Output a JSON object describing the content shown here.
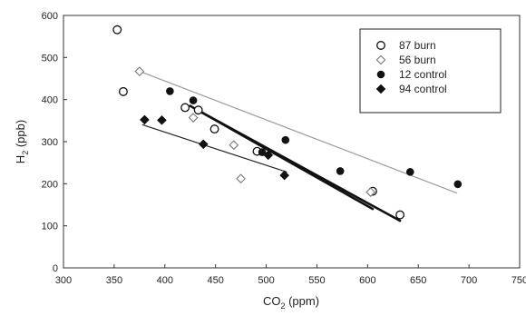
{
  "chart_data": {
    "type": "scatter",
    "title": "",
    "xlabel": {
      "main": "CO",
      "sub": "2",
      "unit": " (ppm)"
    },
    "ylabel": {
      "main": "H",
      "sub": "2",
      "unit": " (ppb)"
    },
    "xlim": [
      300,
      750
    ],
    "ylim": [
      0,
      600
    ],
    "x_ticks": [
      300,
      350,
      400,
      450,
      500,
      550,
      600,
      650,
      700,
      750
    ],
    "y_ticks": [
      0,
      100,
      200,
      300,
      400,
      500,
      600
    ],
    "grid": false,
    "legend_position": "top-right",
    "series": [
      {
        "name": "87 burn",
        "marker": "open-circle",
        "points": [
          [
            353,
            566
          ],
          [
            359,
            419
          ],
          [
            420,
            381
          ],
          [
            433,
            375
          ],
          [
            449,
            330
          ],
          [
            491,
            277
          ],
          [
            605,
            182
          ],
          [
            632,
            126
          ]
        ],
        "fit": {
          "style": "thick-black",
          "x": [
            430,
            632
          ],
          "y": [
            378,
            112
          ]
        }
      },
      {
        "name": "56 burn",
        "marker": "open-diamond",
        "points": [
          [
            375,
            467
          ],
          [
            428,
            357
          ],
          [
            468,
            292
          ],
          [
            475,
            212
          ],
          [
            603,
            180
          ]
        ],
        "fit": {
          "style": "thin-gray",
          "x": [
            372,
            688
          ],
          "y": [
            470,
            178
          ]
        }
      },
      {
        "name": "12 control",
        "marker": "filled-circle",
        "points": [
          [
            405,
            420
          ],
          [
            428,
            398
          ],
          [
            496,
            275
          ],
          [
            519,
            304
          ],
          [
            573,
            230
          ],
          [
            642,
            228
          ],
          [
            689,
            199
          ]
        ],
        "fit": {
          "style": "thick-black",
          "x": [
            425,
            605
          ],
          "y": [
            385,
            140
          ]
        }
      },
      {
        "name": "94 control",
        "marker": "filled-diamond",
        "points": [
          [
            380,
            352
          ],
          [
            397,
            351
          ],
          [
            438,
            294
          ],
          [
            502,
            268
          ],
          [
            518,
            220
          ]
        ],
        "fit": {
          "style": "thin-black",
          "x": [
            378,
            520
          ],
          "y": [
            340,
            228
          ]
        }
      }
    ]
  }
}
